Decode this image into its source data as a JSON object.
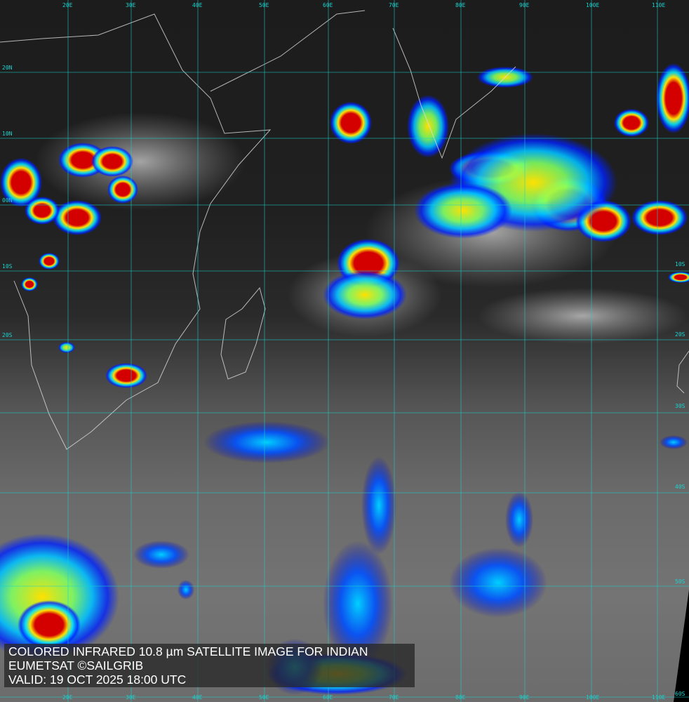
{
  "caption": {
    "line1": "COLORED INFRARED 10.8 µm SATELLITE IMAGE FOR INDIAN",
    "line2": "EUMETSAT ©SAILGRIB",
    "line3": "VALID:  19 OCT 2025 18:00 UTC"
  },
  "grid": {
    "longitudes": [
      "20E",
      "30E",
      "40E",
      "50E",
      "60E",
      "70E",
      "80E",
      "90E",
      "100E",
      "110E"
    ],
    "latitudes_left": [
      "20N",
      "10N",
      "00N",
      "10S",
      "20S"
    ],
    "latitudes_right": [
      "10S",
      "20S",
      "30S",
      "40S",
      "50S",
      "60S"
    ],
    "color": "#19d4d0"
  },
  "colors": {
    "cold_tops": "#d40000",
    "mid": "#ffe000",
    "warm_edge": "#0020ff"
  }
}
